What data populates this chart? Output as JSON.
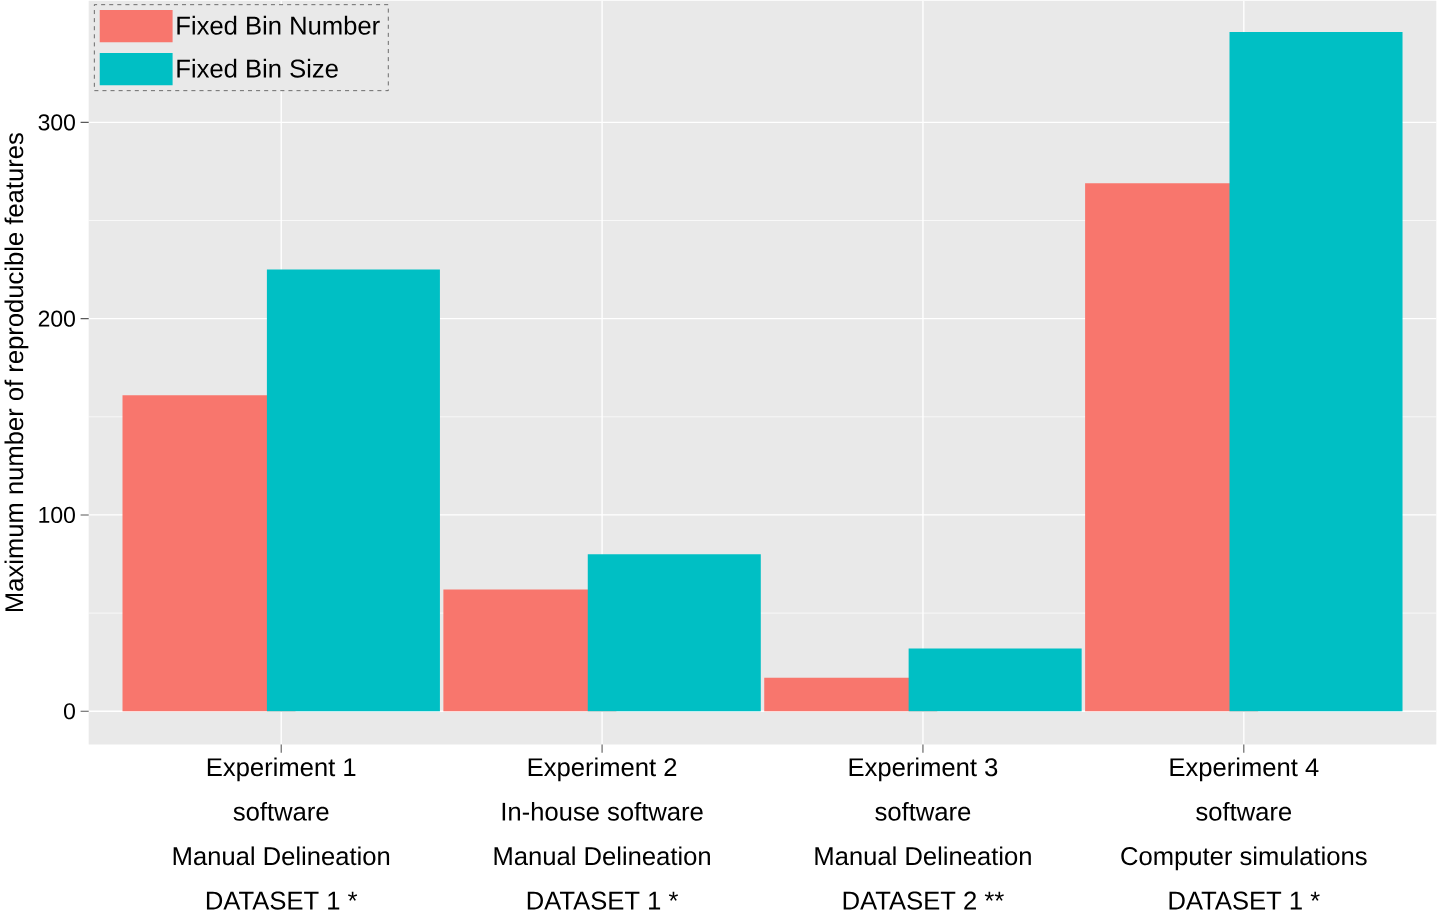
{
  "chart_data": {
    "type": "bar",
    "ylabel": "Maximum number of reproducible features",
    "categories": [
      "Experiment 1\nsoftware\nManual Delineation\nDATASET 1 *",
      "Experiment 2\nIn-house software\nManual Delineation\nDATASET 1 *",
      "Experiment 3\nsoftware\nManual Delineation\nDATASET 2 **",
      "Experiment 4\nsoftware\nComputer simulations\nDATASET 1 *"
    ],
    "series": [
      {
        "name": "Fixed Bin Number",
        "color": "#f8766d",
        "values": [
          161,
          62,
          17,
          269
        ]
      },
      {
        "name": "Fixed Bin Size",
        "color": "#00bfc4",
        "values": [
          225,
          80,
          32,
          346
        ]
      }
    ],
    "ylim": [
      -17,
      362
    ],
    "yticks": [
      0,
      100,
      200,
      300
    ],
    "grid": true,
    "legend": "top left"
  }
}
